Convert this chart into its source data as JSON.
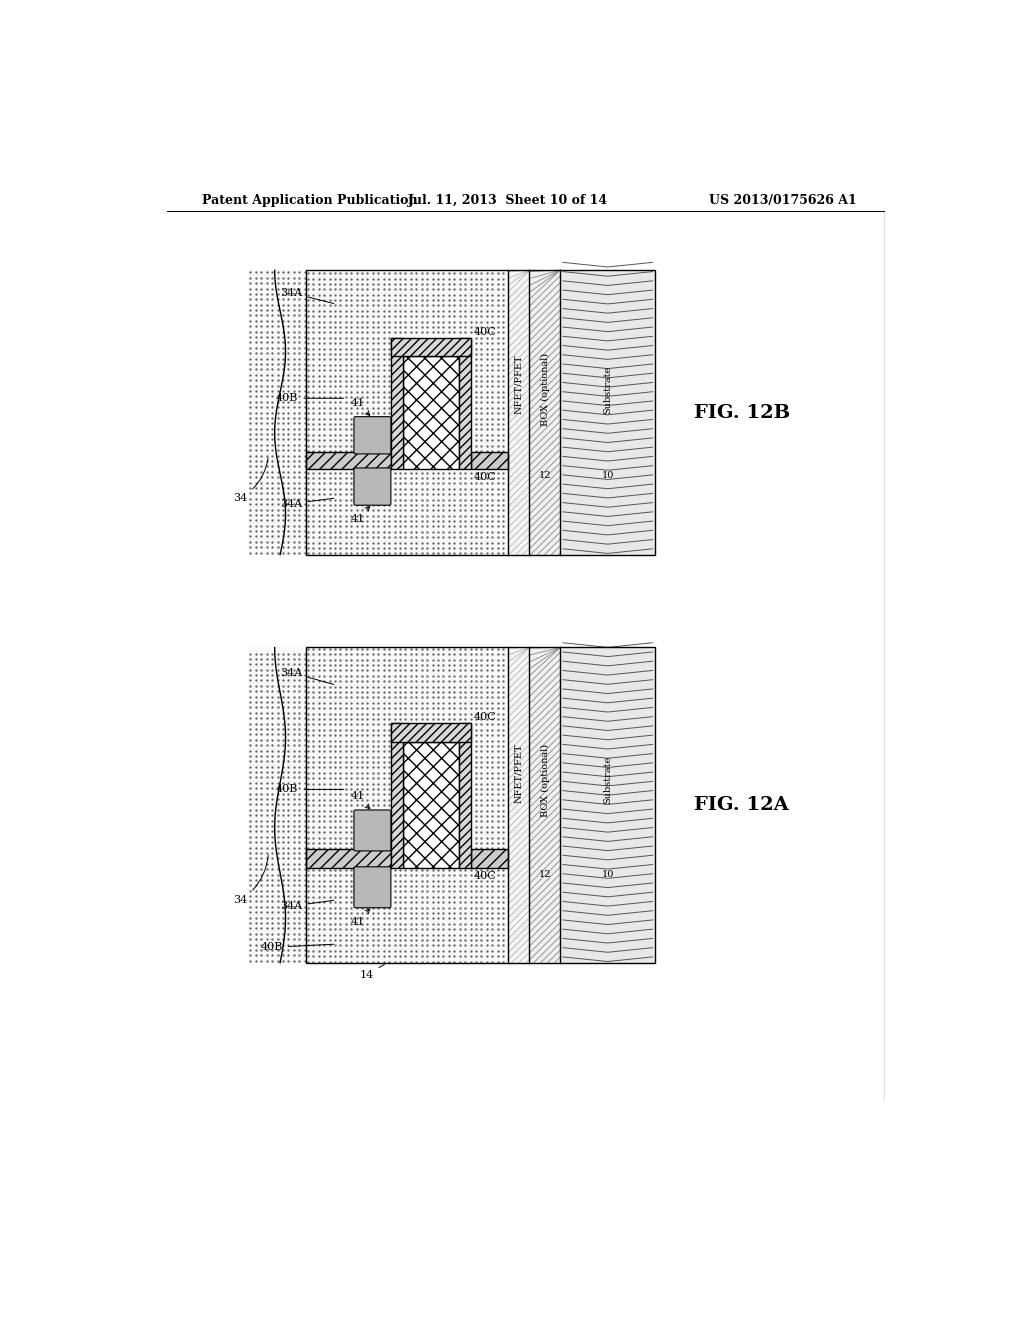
{
  "bg_color": "#ffffff",
  "line_color": "#000000",
  "header_left": "Patent Application Publication",
  "header_center": "Jul. 11, 2013  Sheet 10 of 14",
  "header_right": "US 2013/0175626 A1",
  "fig_12b_label": "FIG. 12B",
  "fig_12a_label": "FIG. 12A",
  "label_34": "34",
  "label_34A": "34A",
  "label_40B": "40B",
  "label_41": "41",
  "label_40C": "40C",
  "label_14": "14",
  "label_nfet": "NFET/PFET",
  "label_box": "BOX (optional)",
  "label_box_num": "12",
  "label_substrate": "Substrate",
  "label_sub_num": "10"
}
